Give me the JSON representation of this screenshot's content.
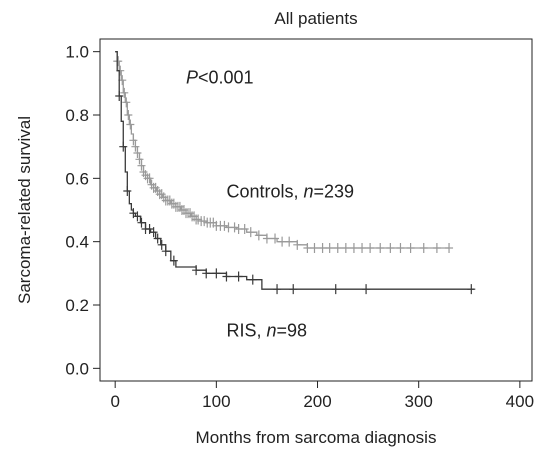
{
  "chart_data": {
    "type": "line",
    "title": "All patients",
    "xlabel": "Months from sarcoma diagnosis",
    "ylabel": "Sarcoma-related survival",
    "xlim": [
      -15,
      412
    ],
    "ylim": [
      -0.04,
      1.04
    ],
    "x_ticks": [
      0,
      100,
      200,
      300,
      400
    ],
    "y_ticks": [
      0.0,
      0.2,
      0.4,
      0.6,
      0.8,
      1.0
    ],
    "y_tick_labels": [
      "0.0",
      "0.2",
      "0.4",
      "0.6",
      "0.8",
      "1.0"
    ],
    "grid": false,
    "annotations": [
      {
        "name": "p-value",
        "prefix": "P",
        "relation": "<",
        "value": "0.001",
        "x": 70,
        "y": 0.9
      },
      {
        "name": "controls-label",
        "prefix": "Controls, ",
        "var": "n",
        "relation": "=",
        "value": "239",
        "x": 110,
        "y": 0.54
      },
      {
        "name": "ris-label",
        "prefix": "RIS, ",
        "var": "n",
        "relation": "=",
        "value": "98",
        "x": 110,
        "y": 0.1
      }
    ],
    "series": [
      {
        "color": "#9a9a9a",
        "x": [
          0,
          2,
          4,
          6,
          8,
          10,
          12,
          14,
          16,
          18,
          20,
          22,
          24,
          26,
          28,
          30,
          32,
          35,
          38,
          41,
          44,
          47,
          50,
          55,
          60,
          65,
          70,
          75,
          80,
          85,
          90,
          100,
          110,
          120,
          130,
          140,
          150,
          160,
          170,
          180,
          190,
          200,
          250,
          300,
          330
        ],
        "y": [
          1.0,
          0.97,
          0.94,
          0.91,
          0.87,
          0.84,
          0.8,
          0.77,
          0.74,
          0.72,
          0.7,
          0.68,
          0.66,
          0.64,
          0.62,
          0.61,
          0.6,
          0.58,
          0.57,
          0.56,
          0.55,
          0.54,
          0.53,
          0.52,
          0.51,
          0.5,
          0.49,
          0.48,
          0.47,
          0.465,
          0.46,
          0.45,
          0.445,
          0.44,
          0.43,
          0.42,
          0.41,
          0.4,
          0.4,
          0.39,
          0.38,
          0.38,
          0.38,
          0.38,
          0.38
        ],
        "censor_x": [
          2,
          3,
          5,
          7,
          9,
          11,
          13,
          15,
          18,
          20,
          22,
          24,
          26,
          28,
          30,
          32,
          34,
          36,
          38,
          40,
          42,
          44,
          46,
          48,
          50,
          52,
          54,
          56,
          58,
          60,
          62,
          64,
          66,
          68,
          70,
          72,
          74,
          76,
          78,
          80,
          82,
          85,
          88,
          91,
          94,
          97,
          100,
          104,
          108,
          112,
          118,
          122,
          128,
          134,
          142,
          150,
          158,
          165,
          172,
          180,
          190,
          197,
          205,
          212,
          220,
          228,
          236,
          244,
          252,
          262,
          272,
          282,
          292,
          305,
          318,
          330
        ]
      },
      {
        "color": "#3a3a3a",
        "x": [
          0,
          2,
          4,
          6,
          8,
          10,
          12,
          14,
          16,
          18,
          20,
          25,
          30,
          35,
          40,
          45,
          50,
          55,
          60,
          70,
          80,
          90,
          100,
          110,
          120,
          130,
          140,
          145,
          160,
          200,
          250,
          300,
          355
        ],
        "y": [
          1.0,
          0.94,
          0.86,
          0.78,
          0.7,
          0.62,
          0.56,
          0.52,
          0.5,
          0.49,
          0.48,
          0.46,
          0.44,
          0.43,
          0.41,
          0.39,
          0.37,
          0.34,
          0.32,
          0.32,
          0.31,
          0.3,
          0.3,
          0.29,
          0.29,
          0.28,
          0.28,
          0.25,
          0.25,
          0.25,
          0.25,
          0.25,
          0.25
        ],
        "censor_x": [
          4,
          8,
          12,
          18,
          22,
          26,
          30,
          34,
          38,
          42,
          46,
          50,
          58,
          80,
          90,
          100,
          110,
          122,
          136,
          160,
          176,
          218,
          248,
          352
        ]
      }
    ]
  }
}
